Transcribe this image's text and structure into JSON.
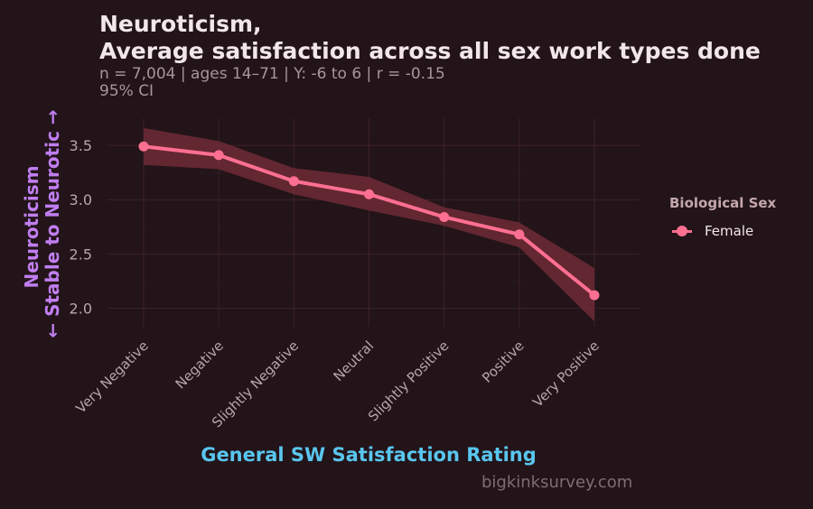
{
  "title": {
    "line1": "Neuroticism,",
    "line2": "Average satisfaction across all sex work types done"
  },
  "subtitle": {
    "line1": "n = 7,004  |  ages 14–71  |  Y: -6 to 6  |  r = -0.15",
    "line2": "95% CI"
  },
  "credit": "bigkinksurvey.com",
  "legend": {
    "title": "Biological Sex",
    "items": [
      {
        "label": "Female",
        "color": "#ff6f91"
      }
    ]
  },
  "colors": {
    "background": "#221419",
    "grid": "#3d2129",
    "line": "#ff6f91",
    "ribbon": "#6e2a36",
    "xlabel": "#59c6ee",
    "ylabel": "#c07ef0"
  },
  "chart_data": {
    "type": "line",
    "xlabel": "General SW Satisfaction Rating",
    "ylabel_line1": "Neuroticism",
    "ylabel_line2": "← Stable to Neurotic →",
    "categories": [
      "Very Negative",
      "Negative",
      "Slightly Negative",
      "Neutral",
      "Slightly Positive",
      "Positive",
      "Very Positive"
    ],
    "series": [
      {
        "name": "Female",
        "values": [
          3.49,
          3.41,
          3.17,
          3.05,
          2.84,
          2.68,
          2.12
        ],
        "ci_low": [
          3.32,
          3.28,
          3.05,
          2.9,
          2.76,
          2.56,
          1.88
        ],
        "ci_high": [
          3.66,
          3.54,
          3.29,
          3.21,
          2.93,
          2.79,
          2.37
        ]
      }
    ],
    "yticks": [
      2.0,
      2.5,
      3.0,
      3.5
    ],
    "ylim": [
      1.83,
      3.75
    ],
    "grid": true,
    "legend_position": "right"
  }
}
